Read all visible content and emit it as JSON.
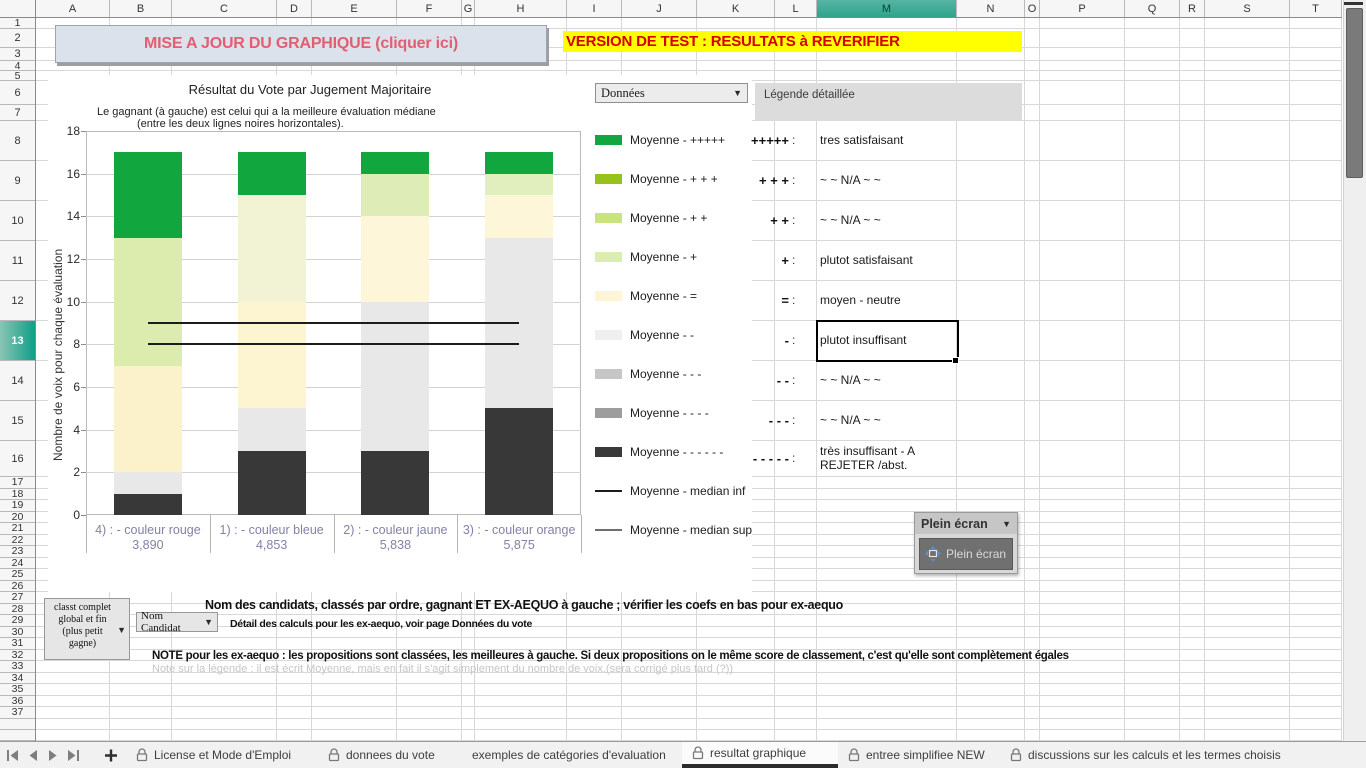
{
  "app": {
    "columns": [
      "A",
      "B",
      "C",
      "D",
      "E",
      "F",
      "G",
      "H",
      "I",
      "J",
      "K",
      "L",
      "M",
      "N",
      "O",
      "P",
      "Q",
      "R",
      "S",
      "T"
    ],
    "rows": [
      "1",
      "2",
      "3",
      "4",
      "5",
      "6",
      "7",
      "8",
      "9",
      "10",
      "11",
      "12",
      "13",
      "14",
      "15",
      "16",
      "17",
      "18",
      "19",
      "20",
      "21",
      "22",
      "23",
      "24",
      "25",
      "26",
      "27",
      "28",
      "29",
      "30",
      "31",
      "32",
      "33",
      "34",
      "35",
      "36",
      "37"
    ],
    "selected_column": "M",
    "selected_row": "13"
  },
  "update_button": {
    "label": "MISE A JOUR DU GRAPHIQUE (cliquer ici)"
  },
  "banner": {
    "text": "VERSION DE TEST : RESULTATS à REVERIFIER",
    "bg": "#ffff00",
    "color": "#d40000"
  },
  "data_selector": {
    "value": "Données"
  },
  "chart_data": {
    "type": "bar",
    "stacked": true,
    "title": "Résultat du Vote par Jugement Majoritaire",
    "subtitle": [
      "Le gagnant (à gauche) est celui qui a la meilleure évaluation médiane",
      "(entre les deux lignes noires horizontales)."
    ],
    "ylabel": "Nombre de voix pour chaque évaluation",
    "ylim": [
      0,
      18
    ],
    "ytick_step": 2,
    "grid": true,
    "legend_position": "right",
    "categories": [
      "4) : - couleur rouge",
      "1) : - couleur bleue",
      "2) : - couleur jaune",
      "3) : - couleur orange"
    ],
    "category_scores": [
      "3,890",
      "4,853",
      "5,838",
      "5,875"
    ],
    "series": [
      {
        "name": "Moyenne -  - - - - -",
        "color": "#383838",
        "values": [
          1,
          3,
          3,
          5
        ]
      },
      {
        "name": "Moyenne -  -",
        "color": "#e8e8e8",
        "values": [
          1,
          2,
          7,
          8
        ]
      },
      {
        "name": "Moyenne -  =",
        "color": "#fdf4d3",
        "colors": [
          "#fbf2cb",
          "#fdf4d2",
          "#fdf6d9",
          "#fdf6d9"
        ],
        "values": [
          5,
          5,
          4,
          2
        ]
      },
      {
        "name": "Moyenne -  +",
        "color": "#dcecae",
        "colors": [
          "#dcecae",
          "#f2f3d4",
          "#deedb8",
          "#e1eebd"
        ],
        "values": [
          6,
          5,
          2,
          1
        ]
      },
      {
        "name": "Moyenne -  +++++",
        "color": "#12a63e",
        "values": [
          4,
          2,
          1,
          1
        ]
      }
    ],
    "median_lines": {
      "inf": 8,
      "sup": 9
    },
    "legend": [
      {
        "label": "Moyenne -  +++++",
        "type": "box",
        "color": "#12a63e"
      },
      {
        "label": "Moyenne -  + + +",
        "type": "box",
        "color": "#96c21e"
      },
      {
        "label": "Moyenne -  + +",
        "type": "box",
        "color": "#c9e47e"
      },
      {
        "label": "Moyenne -  +",
        "type": "box",
        "color": "#dcedb2"
      },
      {
        "label": "Moyenne -  =",
        "type": "box",
        "color": "#fdf5d6"
      },
      {
        "label": "Moyenne -  -",
        "type": "box",
        "color": "#efefef"
      },
      {
        "label": "Moyenne -  - -",
        "type": "box",
        "color": "#c6c6c6"
      },
      {
        "label": "Moyenne -  - - -",
        "type": "box",
        "color": "#9d9d9d"
      },
      {
        "label": "Moyenne -  - - - - -",
        "type": "box",
        "color": "#3a3a3a"
      },
      {
        "label": "Moyenne - median inf",
        "type": "line",
        "color": "#1c1c1c"
      },
      {
        "label": "Moyenne - median sup",
        "type": "line",
        "color": "#6e6e6e"
      }
    ]
  },
  "detailed_legend": {
    "title": "Légende détaillée",
    "rows": [
      {
        "symbol": "+++++",
        "desc": "tres satisfaisant"
      },
      {
        "symbol": "+ + +",
        "desc": "~ ~ N/A ~ ~"
      },
      {
        "symbol": "+ +",
        "desc": "~ ~ N/A ~ ~"
      },
      {
        "symbol": "+",
        "desc": "plutot satisfaisant"
      },
      {
        "symbol": "=",
        "desc": "moyen - neutre"
      },
      {
        "symbol": "-",
        "desc": "plutot insuffisant",
        "selected": true
      },
      {
        "symbol": "- -",
        "desc": "~ ~ N/A ~ ~"
      },
      {
        "symbol": "- - -",
        "desc": "~ ~ N/A ~ ~"
      },
      {
        "symbol": "- - - - -",
        "desc": "très insuffisant - A REJETER  /abst."
      }
    ]
  },
  "fullscreen_toolbar": {
    "title": "Plein écran",
    "button_label": "Plein écran"
  },
  "bottom_controls": {
    "classement_dropdown": "classt complet global et fin (plus petit gagne)",
    "candidat_dropdown": "Nom Candidat",
    "caption1": "Nom des candidats, classés par ordre, gagnant ET EX-AEQUO à gauche ; vérifier les coefs en bas pour ex-aequo",
    "caption2": "Détail des calculs pour les ex-aequo, voir page Données du vote",
    "note_bold": "NOTE pour les ex-aequo : les propositions sont classées, les meilleures à gauche.  Si deux propositions on le même score de classement, c'est qu'elle sont complètement égales",
    "note_gray": "Note sur la légende : il est écrit Moyenne, mais en fait il s'agit simplement du nombre de voix.(sera corrigé plus tard (?))"
  },
  "sheet_tabs": {
    "tabs": [
      {
        "label": "License et Mode d'Emploi",
        "lock": true,
        "active": false
      },
      {
        "label": "donnees du vote",
        "lock": true,
        "active": false
      },
      {
        "label": "exemples de catégories d'evaluation",
        "lock": false,
        "active": false
      },
      {
        "label": "resultat graphique",
        "lock": true,
        "active": true
      },
      {
        "label": "entree simplifiee NEW",
        "lock": true,
        "active": false
      },
      {
        "label": "discussions sur les calculs et les termes choisis",
        "lock": true,
        "active": false
      }
    ]
  }
}
